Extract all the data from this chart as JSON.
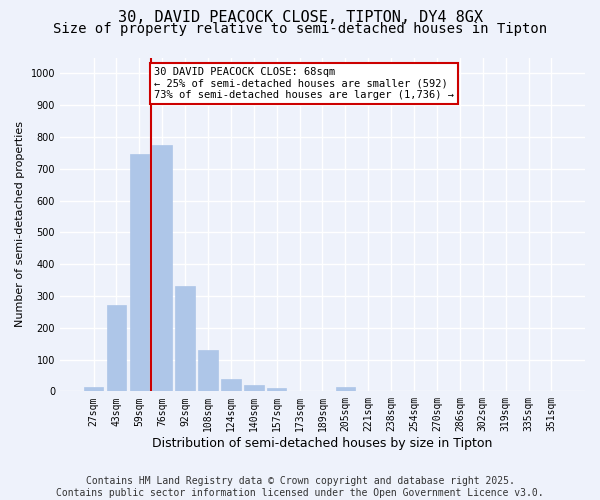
{
  "title_line1": "30, DAVID PEACOCK CLOSE, TIPTON, DY4 8GX",
  "title_line2": "Size of property relative to semi-detached houses in Tipton",
  "xlabel": "Distribution of semi-detached houses by size in Tipton",
  "ylabel": "Number of semi-detached properties",
  "categories": [
    "27sqm",
    "43sqm",
    "59sqm",
    "76sqm",
    "92sqm",
    "108sqm",
    "124sqm",
    "140sqm",
    "157sqm",
    "173sqm",
    "189sqm",
    "205sqm",
    "221sqm",
    "238sqm",
    "254sqm",
    "270sqm",
    "286sqm",
    "302sqm",
    "319sqm",
    "335sqm",
    "351sqm"
  ],
  "values": [
    15,
    270,
    745,
    775,
    330,
    130,
    40,
    20,
    10,
    0,
    0,
    15,
    0,
    0,
    0,
    0,
    0,
    0,
    0,
    0,
    0
  ],
  "bar_color": "#aec6e8",
  "bar_edgecolor": "#aec6e8",
  "vline_color": "#cc0000",
  "vline_pos": 2.5,
  "annotation_box_text": "30 DAVID PEACOCK CLOSE: 68sqm\n← 25% of semi-detached houses are smaller (592)\n73% of semi-detached houses are larger (1,736) →",
  "annotation_box_color": "#cc0000",
  "ylim": [
    0,
    1050
  ],
  "yticks": [
    0,
    100,
    200,
    300,
    400,
    500,
    600,
    700,
    800,
    900,
    1000
  ],
  "background_color": "#eef2fb",
  "grid_color": "#ffffff",
  "footnote": "Contains HM Land Registry data © Crown copyright and database right 2025.\nContains public sector information licensed under the Open Government Licence v3.0.",
  "title_fontsize": 11,
  "subtitle_fontsize": 10,
  "tick_fontsize": 7,
  "ylabel_fontsize": 8,
  "xlabel_fontsize": 9,
  "footnote_fontsize": 7,
  "annotation_fontsize": 7.5
}
